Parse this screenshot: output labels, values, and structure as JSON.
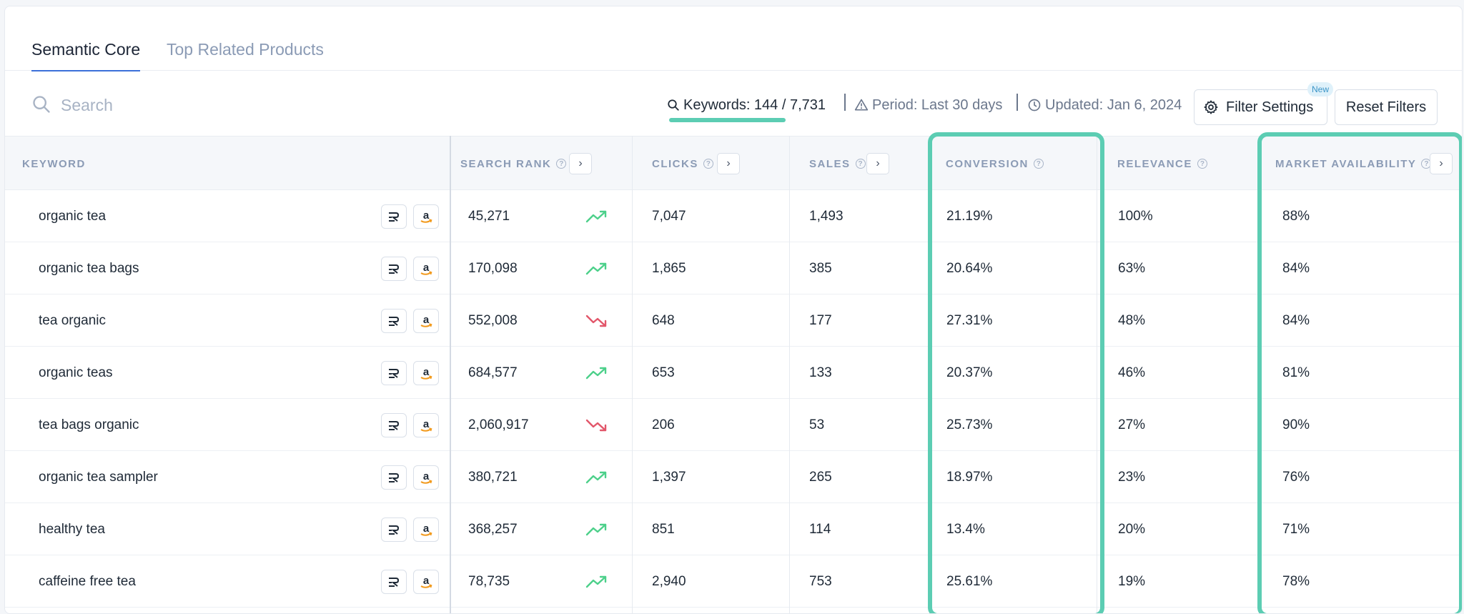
{
  "tabs": [
    {
      "label": "Semantic Core"
    },
    {
      "label": "Top Related Products"
    }
  ],
  "search": {
    "placeholder": "Search"
  },
  "meta": {
    "keywords": "Keywords: 144 / 7,731",
    "period": "Period: Last 30 days",
    "updated": "Updated: Jan 6, 2024"
  },
  "buttons": {
    "filter_settings": "Filter Settings",
    "new_badge": "New",
    "reset_filters": "Reset Filters"
  },
  "columns": {
    "keyword": "KEYWORD",
    "search_rank": "SEARCH RANK",
    "clicks": "CLICKS",
    "sales": "SALES",
    "conversion": "CONVERSION",
    "relevance": "RELEVANCE",
    "market_availability": "MARKET AVAILABILITY"
  },
  "rows": [
    {
      "keyword": "organic tea",
      "search_rank": "45,271",
      "trend": "up",
      "clicks": "7,047",
      "sales": "1,493",
      "conversion": "21.19%",
      "relevance": "100%",
      "market": "88%"
    },
    {
      "keyword": "organic tea bags",
      "search_rank": "170,098",
      "trend": "up",
      "clicks": "1,865",
      "sales": "385",
      "conversion": "20.64%",
      "relevance": "63%",
      "market": "84%"
    },
    {
      "keyword": "tea organic",
      "search_rank": "552,008",
      "trend": "down",
      "clicks": "648",
      "sales": "177",
      "conversion": "27.31%",
      "relevance": "48%",
      "market": "84%"
    },
    {
      "keyword": "organic teas",
      "search_rank": "684,577",
      "trend": "up",
      "clicks": "653",
      "sales": "133",
      "conversion": "20.37%",
      "relevance": "46%",
      "market": "81%"
    },
    {
      "keyword": "tea bags organic",
      "search_rank": "2,060,917",
      "trend": "down",
      "clicks": "206",
      "sales": "53",
      "conversion": "25.73%",
      "relevance": "27%",
      "market": "90%"
    },
    {
      "keyword": "organic tea sampler",
      "search_rank": "380,721",
      "trend": "up",
      "clicks": "1,397",
      "sales": "265",
      "conversion": "18.97%",
      "relevance": "23%",
      "market": "76%"
    },
    {
      "keyword": "healthy tea",
      "search_rank": "368,257",
      "trend": "up",
      "clicks": "851",
      "sales": "114",
      "conversion": "13.4%",
      "relevance": "20%",
      "market": "71%"
    },
    {
      "keyword": "caffeine free tea",
      "search_rank": "78,735",
      "trend": "up",
      "clicks": "2,940",
      "sales": "753",
      "conversion": "25.61%",
      "relevance": "19%",
      "market": "78%"
    }
  ],
  "colors": {
    "trend_up": "#4cd08a",
    "trend_down": "#e2566a",
    "highlight": "#5ccdb3",
    "accent_tab": "#3b6fd9"
  },
  "icons": {
    "row_buttons": [
      "sr-logo-icon",
      "amazon-icon"
    ],
    "trend": [
      "trend-up-icon",
      "trend-down-icon"
    ]
  }
}
